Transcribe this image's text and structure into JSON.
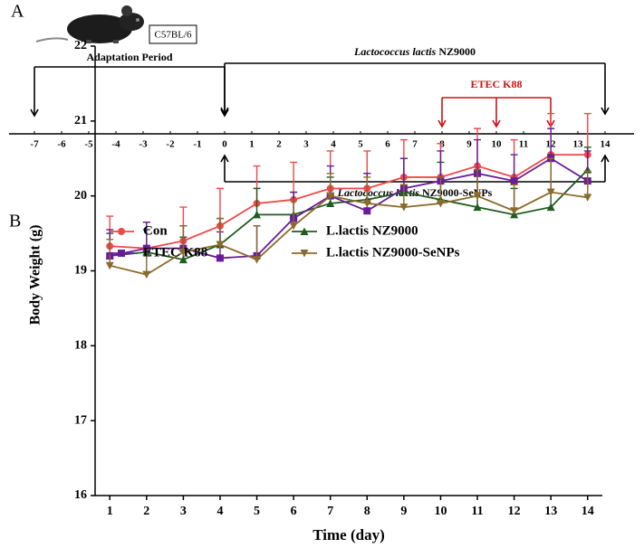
{
  "panel_labels": [
    "A",
    "B"
  ],
  "timeline": {
    "strain": "C57BL/6",
    "ticks": [
      -7,
      -6,
      -5,
      -4,
      -3,
      -2,
      -1,
      0,
      1,
      2,
      3,
      4,
      5,
      6,
      7,
      8,
      9,
      10,
      11,
      12,
      13,
      14
    ],
    "adaptation": {
      "label": "Adaptation Period",
      "days": [
        -7,
        0
      ]
    },
    "nz9000": {
      "label_italic": "Lactococcus lactis",
      "label_rest": " NZ9000",
      "days": [
        0,
        14
      ]
    },
    "etec": {
      "label": "ETEC K88",
      "days": [
        8,
        10,
        12
      ]
    },
    "senps": {
      "label_italic": "Lactococcus lactis",
      "label_rest": " NZ9000-SeNPs",
      "days": [
        0,
        14
      ]
    }
  },
  "chart_data": {
    "type": "line",
    "xlabel": "Time (day)",
    "ylabel": "Body Weight (g)",
    "x": [
      1,
      2,
      3,
      4,
      5,
      6,
      7,
      8,
      9,
      10,
      11,
      12,
      13,
      14
    ],
    "xlim": [
      0.6,
      14.4
    ],
    "xticks": [
      1,
      2,
      3,
      4,
      5,
      6,
      7,
      8,
      9,
      10,
      11,
      12,
      13,
      14
    ],
    "ylim": [
      16,
      22
    ],
    "yticks": [
      16,
      17,
      18,
      19,
      20,
      21,
      22
    ],
    "series": [
      {
        "name": "Con",
        "color": "#f04848",
        "marker": "circle",
        "values": [
          19.33,
          19.3,
          19.4,
          19.6,
          19.9,
          19.95,
          20.1,
          20.1,
          20.25,
          20.25,
          20.4,
          20.25,
          20.55,
          20.55
        ],
        "errors": [
          0.4,
          0.35,
          0.45,
          0.5,
          0.5,
          0.5,
          0.5,
          0.5,
          0.5,
          0.45,
          0.5,
          0.5,
          0.55,
          0.55
        ]
      },
      {
        "name": "L.lactis NZ9000",
        "color": "#1f5c1f",
        "marker": "triangle-up",
        "values": [
          19.2,
          19.25,
          19.15,
          19.35,
          19.75,
          19.75,
          19.9,
          19.95,
          20.05,
          19.95,
          19.85,
          19.75,
          19.85,
          20.35
        ],
        "errors": [
          0.3,
          0.3,
          0.3,
          0.35,
          0.35,
          0.3,
          0.35,
          0.35,
          0.45,
          0.5,
          0.5,
          0.35,
          0.7,
          0.3
        ]
      },
      {
        "name": "ETEC K88",
        "color": "#6a1b9a",
        "marker": "square",
        "values": [
          19.2,
          19.3,
          19.3,
          19.17,
          19.2,
          19.7,
          20.0,
          19.8,
          20.1,
          20.2,
          20.3,
          20.2,
          20.5,
          20.2
        ],
        "errors": [
          0.35,
          0.35,
          0.3,
          0.35,
          0.4,
          0.35,
          0.4,
          0.5,
          0.4,
          0.4,
          0.45,
          0.35,
          0.4,
          0.4
        ]
      },
      {
        "name": "L.lactis NZ9000-SeNPs",
        "color": "#8b6a2b",
        "marker": "triangle-down",
        "values": [
          19.07,
          18.95,
          19.25,
          19.35,
          19.15,
          19.6,
          20.0,
          19.9,
          19.85,
          19.9,
          20.0,
          19.8,
          20.05,
          19.98
        ],
        "errors": [
          0.35,
          0.35,
          0.35,
          0.35,
          0.45,
          0.35,
          0.3,
          0.35,
          0.3,
          0.35,
          0.35,
          0.35,
          0.45,
          0.35
        ]
      }
    ]
  }
}
